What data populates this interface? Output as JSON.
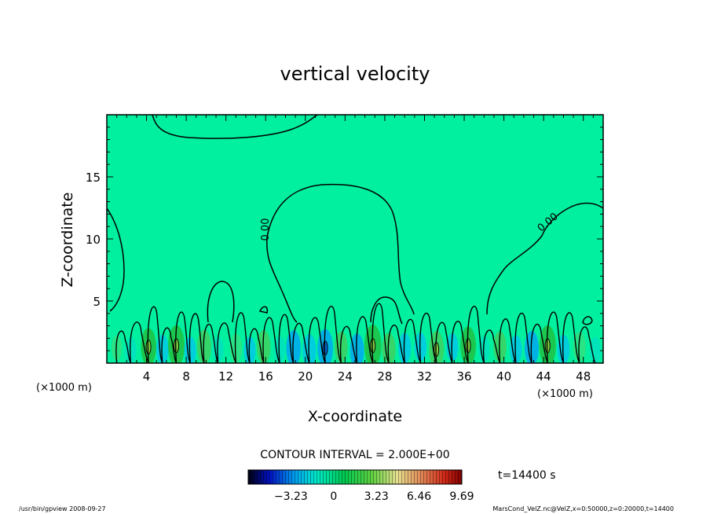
{
  "chart_data": {
    "type": "heatmap",
    "title": "vertical velocity",
    "xlabel": "X-coordinate",
    "ylabel": "Z-coordinate",
    "x_unit": "(×1000 m)",
    "y_unit": "(×1000 m)",
    "xlim": [
      0,
      50
    ],
    "ylim": [
      0,
      20
    ],
    "x_ticks": [
      "4",
      "8",
      "12",
      "16",
      "20",
      "24",
      "28",
      "32",
      "36",
      "40",
      "44",
      "48"
    ],
    "y_ticks": [
      "5",
      "10",
      "15"
    ],
    "contour_labels": [
      "0.00",
      "0.00"
    ],
    "contour_interval": "CONTOUR INTERVAL = 2.000E+00",
    "colorbar_ticks": [
      "−3.23",
      "0",
      "3.23",
      "6.46",
      "9.69"
    ],
    "time_label": "t=14400 s",
    "background_color": "#00f0a0",
    "cells": [
      {
        "x": 1.0,
        "z": 1.2,
        "w": 0.5
      },
      {
        "x": 2.4,
        "z": 1.0,
        "w": -0.8
      },
      {
        "x": 4.2,
        "z": 1.3,
        "w": 2.5
      },
      {
        "x": 5.6,
        "z": 1.1,
        "w": -1.2
      },
      {
        "x": 7.0,
        "z": 1.4,
        "w": 3.0
      },
      {
        "x": 8.4,
        "z": 1.0,
        "w": -1.0
      },
      {
        "x": 9.8,
        "z": 1.3,
        "w": 2.0
      },
      {
        "x": 11.2,
        "z": 1.1,
        "w": -0.6
      },
      {
        "x": 13.0,
        "z": 1.2,
        "w": 1.2
      },
      {
        "x": 14.4,
        "z": 1.0,
        "w": -1.0
      },
      {
        "x": 15.8,
        "z": 1.3,
        "w": 1.8
      },
      {
        "x": 17.4,
        "z": 1.1,
        "w": -0.8
      },
      {
        "x": 18.8,
        "z": 1.2,
        "w": -2.2
      },
      {
        "x": 20.4,
        "z": 1.0,
        "w": -1.8
      },
      {
        "x": 22.0,
        "z": 1.2,
        "w": -2.6
      },
      {
        "x": 23.6,
        "z": 1.3,
        "w": 1.5
      },
      {
        "x": 25.2,
        "z": 1.0,
        "w": -2.0
      },
      {
        "x": 26.8,
        "z": 1.4,
        "w": 3.2
      },
      {
        "x": 28.4,
        "z": 1.1,
        "w": 1.8
      },
      {
        "x": 30.0,
        "z": 1.2,
        "w": -1.4
      },
      {
        "x": 31.6,
        "z": 1.3,
        "w": -1.1
      },
      {
        "x": 33.2,
        "z": 1.1,
        "w": 2.4
      },
      {
        "x": 34.8,
        "z": 1.3,
        "w": -1.0
      },
      {
        "x": 36.4,
        "z": 1.4,
        "w": 2.6
      },
      {
        "x": 38.0,
        "z": 1.1,
        "w": -0.7
      },
      {
        "x": 39.6,
        "z": 1.3,
        "w": 1.5
      },
      {
        "x": 41.2,
        "z": 1.1,
        "w": -1.1
      },
      {
        "x": 42.8,
        "z": 1.2,
        "w": -2.0
      },
      {
        "x": 44.4,
        "z": 1.4,
        "w": 3.0
      },
      {
        "x": 46.0,
        "z": 1.1,
        "w": -1.2
      },
      {
        "x": 47.6,
        "z": 1.3,
        "w": 1.4
      },
      {
        "x": 49.2,
        "z": 1.0,
        "w": -0.8
      }
    ]
  },
  "footer": {
    "left": "/usr/bin/gpview   2008-09-27",
    "right": "MarsCond_VelZ.nc@VelZ,x=0:50000,z=0:20000,t=14400"
  }
}
